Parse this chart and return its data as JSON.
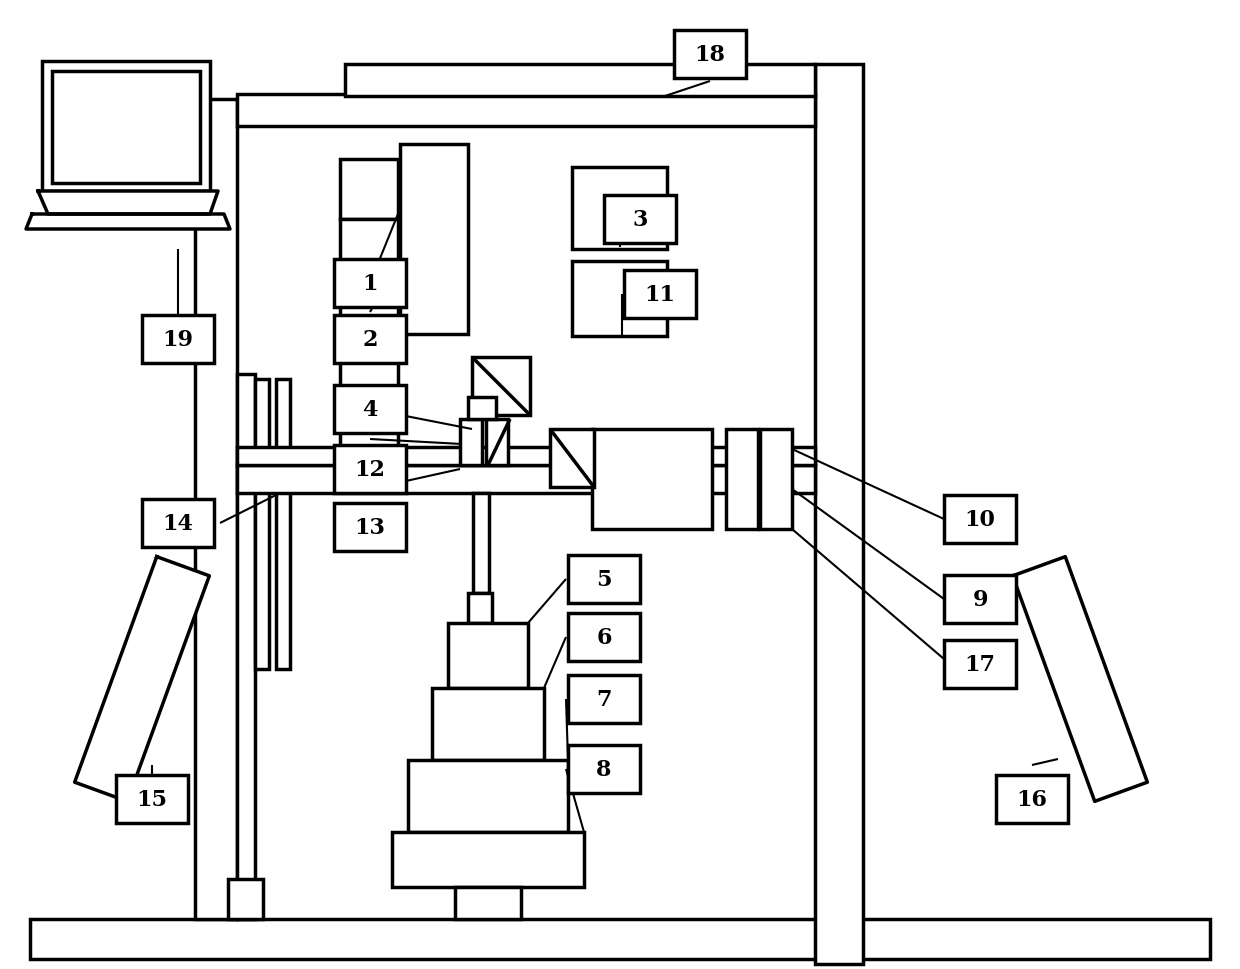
{
  "bg_color": "#ffffff",
  "lc": "#000000",
  "lw": 2.5,
  "thin": 1.5
}
